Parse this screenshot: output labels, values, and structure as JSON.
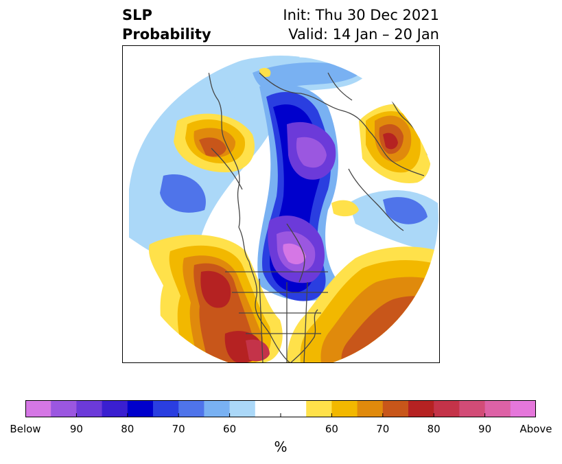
{
  "title": {
    "left_line1": "SLP",
    "left_line2": "Probability",
    "right_line1": "Init: Thu 30 Dec 2021",
    "right_line2": "Valid: 14 Jan – 20 Jan"
  },
  "colorbar": {
    "unit": "%",
    "colors": [
      "#d577e5",
      "#9b57e0",
      "#6c3ad9",
      "#3a1fd0",
      "#0000cc",
      "#2a3ee0",
      "#4f74ea",
      "#79b1f2",
      "#abd8f8",
      "#ffffff",
      "#ffffff",
      "#ffe14a",
      "#f2b800",
      "#e08a0c",
      "#c8561a",
      "#b52222",
      "#c43349",
      "#d24c77",
      "#dd62a6",
      "#e577db"
    ],
    "ticks": [
      {
        "label": "Below",
        "index": 0
      },
      {
        "label": "90",
        "index": 2
      },
      {
        "label": "80",
        "index": 4
      },
      {
        "label": "70",
        "index": 6
      },
      {
        "label": "60",
        "index": 8
      },
      {
        "label": "",
        "index": 10
      },
      {
        "label": "60",
        "index": 12
      },
      {
        "label": "70",
        "index": 14
      },
      {
        "label": "80",
        "index": 16
      },
      {
        "label": "90",
        "index": 18
      },
      {
        "label": "Above",
        "index": 20
      }
    ]
  },
  "map": {
    "projection": "polar-stereographic-north",
    "fields": [
      {
        "region": "north-america-interior",
        "type": "below",
        "level": "90"
      },
      {
        "region": "arctic-siberia",
        "type": "below",
        "level": "80"
      },
      {
        "region": "north-pacific-east",
        "type": "above",
        "level": "80"
      },
      {
        "region": "western-europe",
        "type": "above",
        "level": "70"
      },
      {
        "region": "north-atlantic-south",
        "type": "above",
        "level": "80"
      },
      {
        "region": "east-asia",
        "type": "above",
        "level": "70"
      },
      {
        "region": "north-pacific-west",
        "type": "below",
        "level": "70"
      }
    ]
  }
}
